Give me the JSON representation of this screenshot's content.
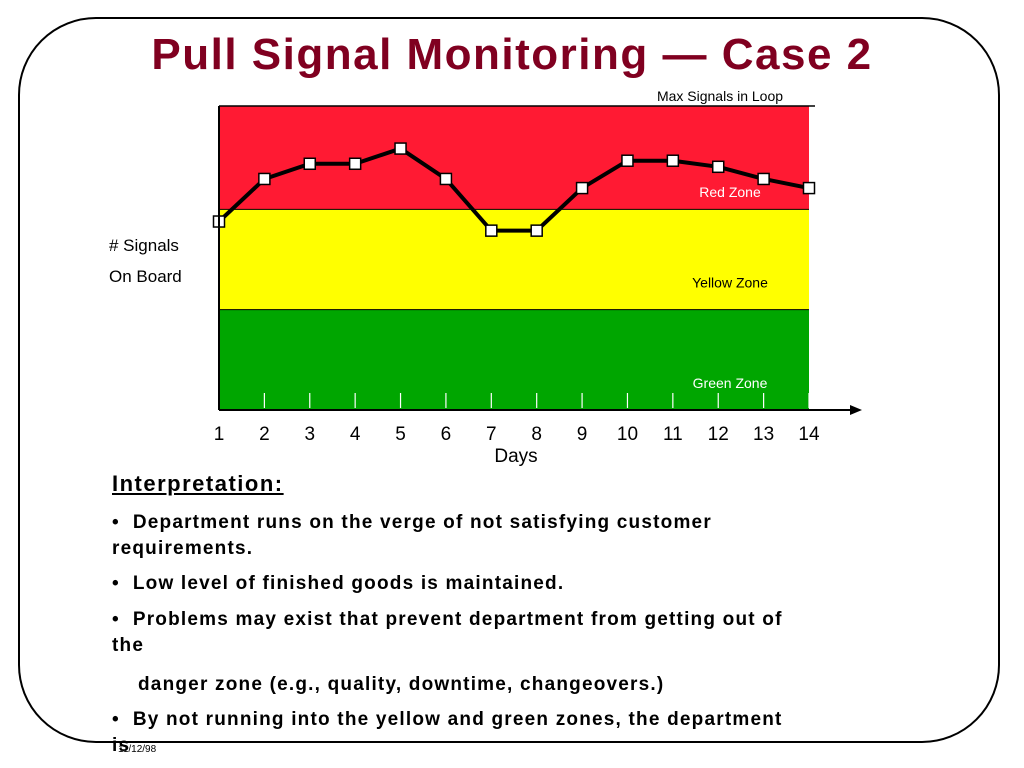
{
  "slide": {
    "title": "Pull Signal Monitoring — Case 2",
    "footer_date": "11/12/98"
  },
  "chart_data": {
    "type": "line",
    "x": [
      1,
      2,
      3,
      4,
      5,
      6,
      7,
      8,
      9,
      10,
      11,
      12,
      13,
      14
    ],
    "series": [
      {
        "values": [
          6.2,
          7.6,
          8.1,
          8.1,
          8.6,
          7.6,
          5.9,
          5.9,
          7.3,
          8.2,
          8.2,
          8.0,
          7.6,
          7.3
        ]
      }
    ],
    "xlabel": "Days",
    "ylabel_lines": [
      "# Signals",
      "On Board"
    ],
    "ylim": [
      0,
      10
    ],
    "max_label": "Max Signals in Loop",
    "zones": [
      {
        "name": "Green Zone",
        "from": 0,
        "to": 3.3,
        "color": "#00a600"
      },
      {
        "name": "Yellow Zone",
        "from": 3.3,
        "to": 6.6,
        "color": "#ffff00"
      },
      {
        "name": "Red Zone",
        "from": 6.6,
        "to": 10,
        "color": "#ff1a33"
      }
    ],
    "line_color": "#000000",
    "marker_fill": "#ffffff"
  },
  "interpretation": {
    "heading": "Interpretation:",
    "bullets": [
      {
        "bullet": "•",
        "lines": [
          "Department runs on the verge of not satisfying customer",
          "requirements."
        ]
      },
      {
        "bullet": "•",
        "lines": [
          "Low level of finished goods is maintained."
        ]
      },
      {
        "bullet": "•",
        "lines": [
          "Problems may exist that prevent department from getting out of",
          "the"
        ]
      },
      {
        "bullet": "",
        "lines": [
          "danger zone (e.g., quality, downtime, changeovers.)"
        ]
      },
      {
        "bullet": "•",
        "lines": [
          "By not running into the yellow and green zones, the department",
          "is"
        ]
      }
    ]
  }
}
